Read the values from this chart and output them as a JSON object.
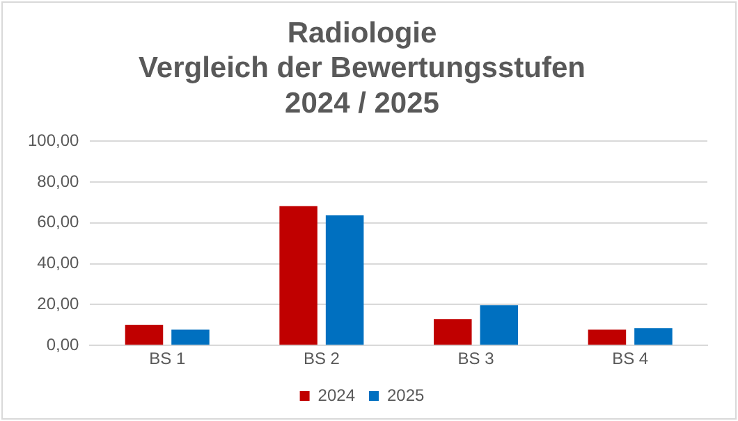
{
  "chart_data": {
    "type": "bar",
    "title": "Radiologie\nVergleich der Bewertungsstufen\n2024 / 2025",
    "categories": [
      "BS 1",
      "BS 2",
      "BS 3",
      "BS 4"
    ],
    "series": [
      {
        "name": "2024",
        "color": "#c00000",
        "values": [
          10,
          68.2,
          12.9,
          7.7
        ]
      },
      {
        "name": "2025",
        "color": "#0070c0",
        "values": [
          7.7,
          63.7,
          19.7,
          8.5
        ]
      }
    ],
    "ylim": [
      0,
      100
    ],
    "yticks": [
      {
        "value": 0,
        "label": "0,00"
      },
      {
        "value": 20,
        "label": "20,00"
      },
      {
        "value": 40,
        "label": "40,00"
      },
      {
        "value": 60,
        "label": "60,00"
      },
      {
        "value": 80,
        "label": "80,00"
      },
      {
        "value": 100,
        "label": "100,00"
      }
    ],
    "grid": "y",
    "legend": "bottom"
  }
}
